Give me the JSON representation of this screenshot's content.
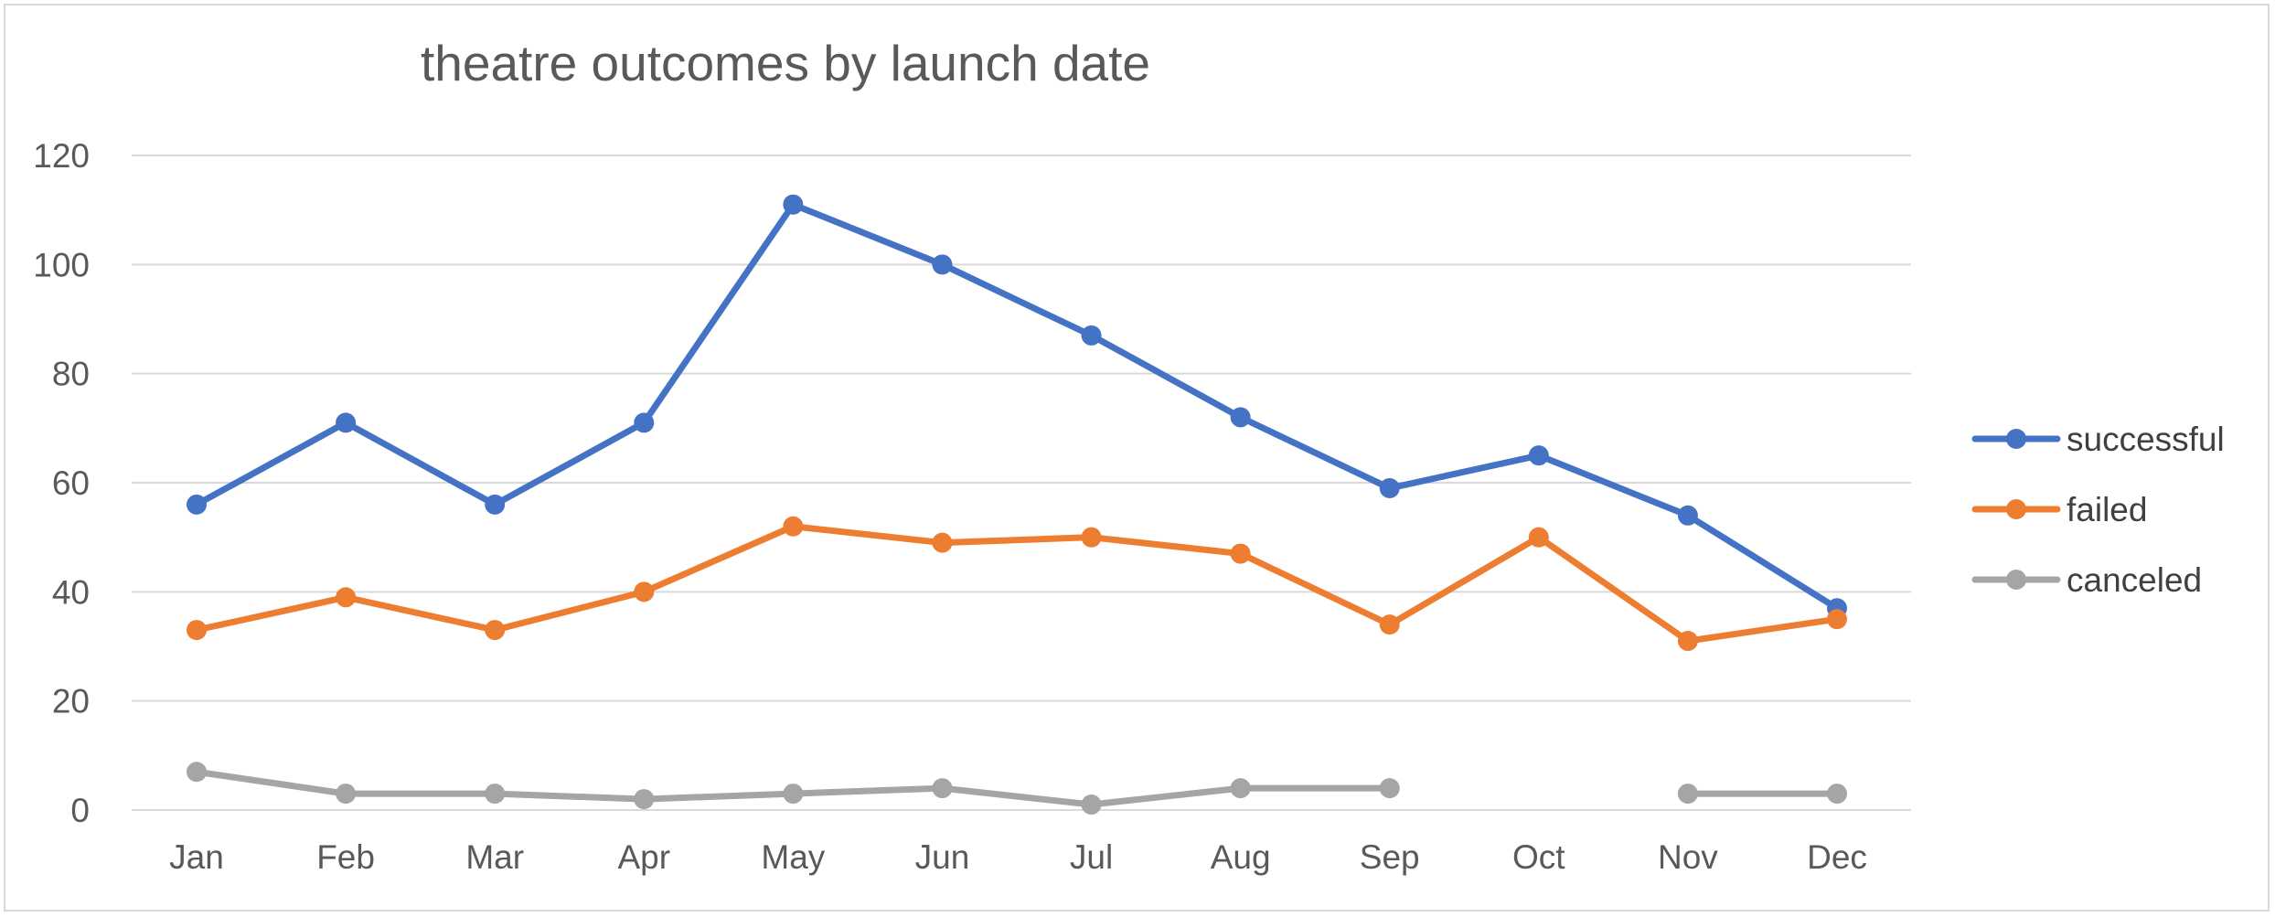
{
  "chart_data": {
    "type": "line",
    "title": "theatre outcomes by launch date",
    "xlabel": "",
    "ylabel": "",
    "categories": [
      "Jan",
      "Feb",
      "Mar",
      "Apr",
      "May",
      "Jun",
      "Jul",
      "Aug",
      "Sep",
      "Oct",
      "Nov",
      "Dec"
    ],
    "ylim": [
      0,
      120
    ],
    "yticks": [
      "0",
      "20",
      "40",
      "60",
      "80",
      "100",
      "120"
    ],
    "grid": "horizontal",
    "legend_position": "right",
    "series": [
      {
        "name": "successful",
        "color": "#4472c4",
        "values": [
          56,
          71,
          56,
          71,
          111,
          100,
          87,
          72,
          59,
          65,
          54,
          37
        ]
      },
      {
        "name": "failed",
        "color": "#ed7d31",
        "values": [
          33,
          39,
          33,
          40,
          52,
          49,
          50,
          47,
          34,
          50,
          31,
          35
        ]
      },
      {
        "name": "canceled",
        "color": "#a5a5a5",
        "values": [
          7,
          3,
          3,
          2,
          3,
          4,
          1,
          4,
          4,
          null,
          3,
          3
        ]
      }
    ]
  }
}
